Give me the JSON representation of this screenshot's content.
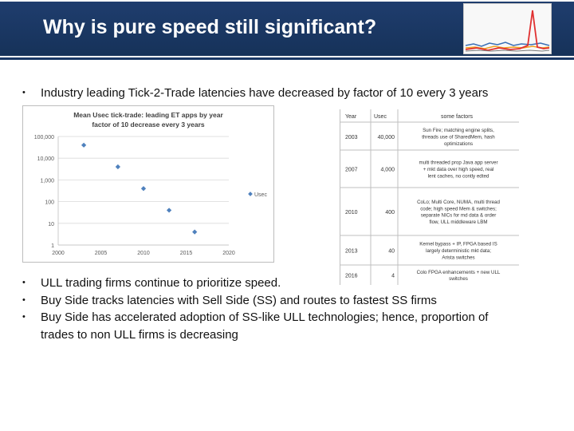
{
  "slide": {
    "title": "Why is pure speed still significant?"
  },
  "bullets": [
    {
      "text": "Industry leading Tick-2-Trade latencies have decreased by factor of 10 every 3 years"
    },
    {
      "text": "ULL trading firms continue to prioritize speed."
    },
    {
      "text": "Buy Side tracks latencies with Sell Side (SS) and routes to fastest SS firms"
    },
    {
      "text": "Buy Side has accelerated adoption of SS-like ULL technologies; hence, proportion of",
      "text_line2": "trades to non ULL firms is decreasing"
    }
  ],
  "bullet_symbol": "•",
  "chart_data": {
    "type": "scatter",
    "title_line1": "Mean Usec tick-trade: leading ET apps by year",
    "title_line2": "factor of 10 decrease every 3 years",
    "x_ticks": [
      "2000",
      "2005",
      "2010",
      "2015",
      "2020"
    ],
    "y_ticks": [
      "100,000",
      "10,000",
      "1,000",
      "100",
      "10",
      "1"
    ],
    "xlim": [
      2000,
      2020
    ],
    "ylim": [
      1,
      100000
    ],
    "y_scale": "log",
    "grid": true,
    "legend_label": "Usec",
    "legend_position": "right",
    "x": [
      2003,
      2007,
      2010,
      2013,
      2016
    ],
    "y": [
      40000,
      4000,
      400,
      40,
      4
    ],
    "marker_color": "#4f81bd"
  },
  "latency_table": {
    "headers": [
      "Year",
      "Usec",
      "some factors"
    ],
    "rows": [
      {
        "year": "2003",
        "usec": "40,000",
        "factors": "Sun Fire; matching engine splits, threads use of SharedMem, hash optimizations"
      },
      {
        "year": "2007",
        "usec": "4,000",
        "factors": "multi threaded prop Java app server + mkt data over high speed, real lent caches, no contly edted"
      },
      {
        "year": "2010",
        "usec": "400",
        "factors": "CoLo; Multi Core, NUMA, multi thread code; high speed Mem & switches; separate NICs for md data & order flow, ULL middleware LBM"
      },
      {
        "year": "2013",
        "usec": "40",
        "factors": "Kernel bypass + IP, FPGA based IS largely deterministic mkt data; Arista switches"
      },
      {
        "year": "2016",
        "usec": "4",
        "factors": "Colo FPGA enhancements + new ULL switches"
      }
    ]
  },
  "colors": {
    "header_bg": "#1a3865",
    "title_text": "#ffffff",
    "marker": "#4f81bd"
  }
}
